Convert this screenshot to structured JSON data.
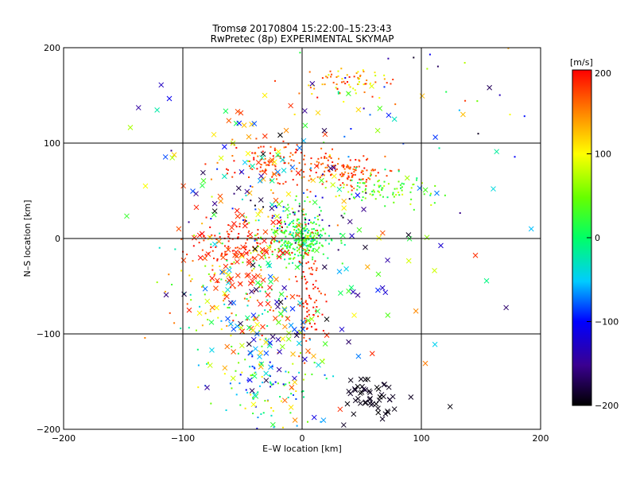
{
  "chart_data": {
    "type": "scatter",
    "title": "Tromsø 20170804 15:22:00–15:23:43",
    "subtitle": "RwPretec (8p) EXPERIMENTAL SKYMAP",
    "xlabel": "E–W location [km]",
    "ylabel": "N–S location [km]",
    "xlim": [
      -200,
      200
    ],
    "ylim": [
      -200,
      200
    ],
    "xticks": [
      "-200",
      "-100",
      "0",
      "100",
      "200"
    ],
    "yticks": [
      "-200",
      "-100",
      "0",
      "100",
      "200"
    ],
    "grid": true,
    "grid_lines": [
      -100,
      0,
      100
    ],
    "colorbar": {
      "label": "[m/s]",
      "range": [
        -200,
        200
      ],
      "ticks": [
        "200",
        "100",
        "0",
        "-100",
        "-200"
      ]
    },
    "clusters": [
      {
        "marker": "dot",
        "cx": 0,
        "cy": 0,
        "sx": 12,
        "sy": 12,
        "n": 260,
        "v": [
          -20,
          60
        ]
      },
      {
        "marker": "dot",
        "cx": 35,
        "cy": 70,
        "sx": 18,
        "sy": 8,
        "n": 120,
        "v": [
          150,
          200
        ]
      },
      {
        "marker": "dot",
        "cx": 70,
        "cy": 50,
        "sx": 18,
        "sy": 8,
        "n": 90,
        "v": [
          -10,
          90
        ]
      },
      {
        "marker": "dot",
        "cx": 40,
        "cy": 165,
        "sx": 20,
        "sy": 8,
        "n": 70,
        "v": [
          80,
          200
        ]
      },
      {
        "marker": "dot",
        "cx": -60,
        "cy": -5,
        "sx": 18,
        "sy": 12,
        "n": 90,
        "v": [
          170,
          200
        ]
      },
      {
        "marker": "dot",
        "cx": -20,
        "cy": 80,
        "sx": 25,
        "sy": 12,
        "n": 120,
        "v": [
          150,
          200
        ]
      },
      {
        "marker": "dot",
        "cx": 5,
        "cy": -60,
        "sx": 6,
        "sy": 28,
        "n": 90,
        "v": [
          170,
          200
        ]
      },
      {
        "marker": "dot",
        "cx": -55,
        "cy": -60,
        "sx": 25,
        "sy": 30,
        "n": 120,
        "v": [
          -40,
          200
        ]
      },
      {
        "marker": "dot",
        "cx": -30,
        "cy": -150,
        "sx": 25,
        "sy": 30,
        "n": 110,
        "v": [
          -120,
          120
        ]
      },
      {
        "marker": "dot",
        "cx": -20,
        "cy": 20,
        "sx": 30,
        "sy": 25,
        "n": 120,
        "v": [
          -200,
          200
        ]
      },
      {
        "marker": "dot",
        "cx": 80,
        "cy": 140,
        "sx": 60,
        "sy": 40,
        "n": 40,
        "v": [
          -200,
          200
        ]
      },
      {
        "marker": "cross",
        "cx": -30,
        "cy": -100,
        "sx": 25,
        "sy": 40,
        "n": 120,
        "v": [
          -200,
          200
        ]
      },
      {
        "marker": "cross",
        "cx": 60,
        "cy": -165,
        "sx": 14,
        "sy": 12,
        "n": 50,
        "v": [
          -200,
          -185
        ]
      },
      {
        "marker": "cross",
        "cx": -30,
        "cy": 50,
        "sx": 40,
        "sy": 40,
        "n": 90,
        "v": [
          -200,
          200
        ]
      },
      {
        "marker": "cross",
        "cx": -55,
        "cy": -20,
        "sx": 20,
        "sy": 25,
        "n": 60,
        "v": [
          170,
          200
        ]
      },
      {
        "marker": "cross",
        "cx": 40,
        "cy": -30,
        "sx": 60,
        "sy": 60,
        "n": 70,
        "v": [
          -200,
          200
        ]
      },
      {
        "marker": "cross",
        "cx": 0,
        "cy": 140,
        "sx": 90,
        "sy": 40,
        "n": 30,
        "v": [
          -200,
          200
        ]
      }
    ]
  }
}
